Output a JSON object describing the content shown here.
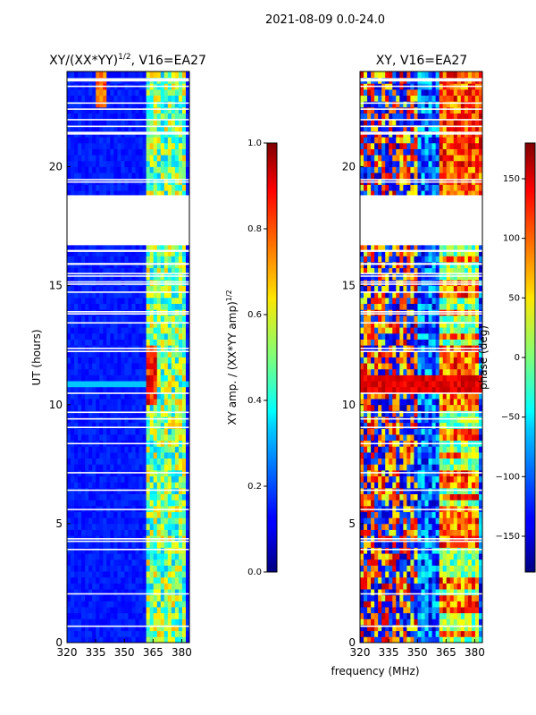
{
  "figure_title": "2021-08-09 0.0-24.0",
  "chart_data": [
    {
      "type": "heatmap",
      "title": "XY/(XX*YY)^1/2, V16=EA27",
      "title_main": "XY/(XX*YY)",
      "title_exp": "1/2",
      "title_rest": ", V16=EA27",
      "xlabel": "",
      "ylabel": "UT (hours)",
      "xlim": [
        320,
        384
      ],
      "ylim": [
        0,
        24
      ],
      "xticks": [
        320,
        335,
        350,
        365,
        380
      ],
      "yticks": [
        0,
        5,
        10,
        15,
        20
      ],
      "data_gaps_hours": [
        [
          16.7,
          18.8
        ]
      ],
      "colorbar": {
        "label": "XY amp. / (XX*YY amp)^1/2",
        "label_main": "XY amp. / (XX*YY amp)",
        "label_exp": "1/2",
        "range": [
          0.0,
          1.0
        ],
        "ticks": [
          "0.0",
          "0.2",
          "0.4",
          "0.6",
          "0.8",
          "1.0"
        ],
        "tick_values": [
          0.0,
          0.2,
          0.4,
          0.6,
          0.8,
          1.0
        ],
        "colormap": "jet"
      }
    },
    {
      "type": "heatmap",
      "title": "XY, V16=EA27",
      "xlabel": "frequency (MHz)",
      "ylabel": "",
      "xlim": [
        320,
        384
      ],
      "ylim": [
        0,
        24
      ],
      "xticks": [
        320,
        335,
        350,
        365,
        380
      ],
      "yticks": [
        0,
        5,
        10,
        15,
        20
      ],
      "data_gaps_hours": [
        [
          16.7,
          18.8
        ]
      ],
      "colorbar": {
        "label": "phase (deg)",
        "range": [
          -180,
          180
        ],
        "ticks": [
          "−150",
          "−100",
          "−50",
          "0",
          "50",
          "100",
          "150"
        ],
        "tick_values": [
          -150,
          -100,
          -50,
          0,
          50,
          100,
          150
        ],
        "colormap": "jet"
      }
    }
  ]
}
